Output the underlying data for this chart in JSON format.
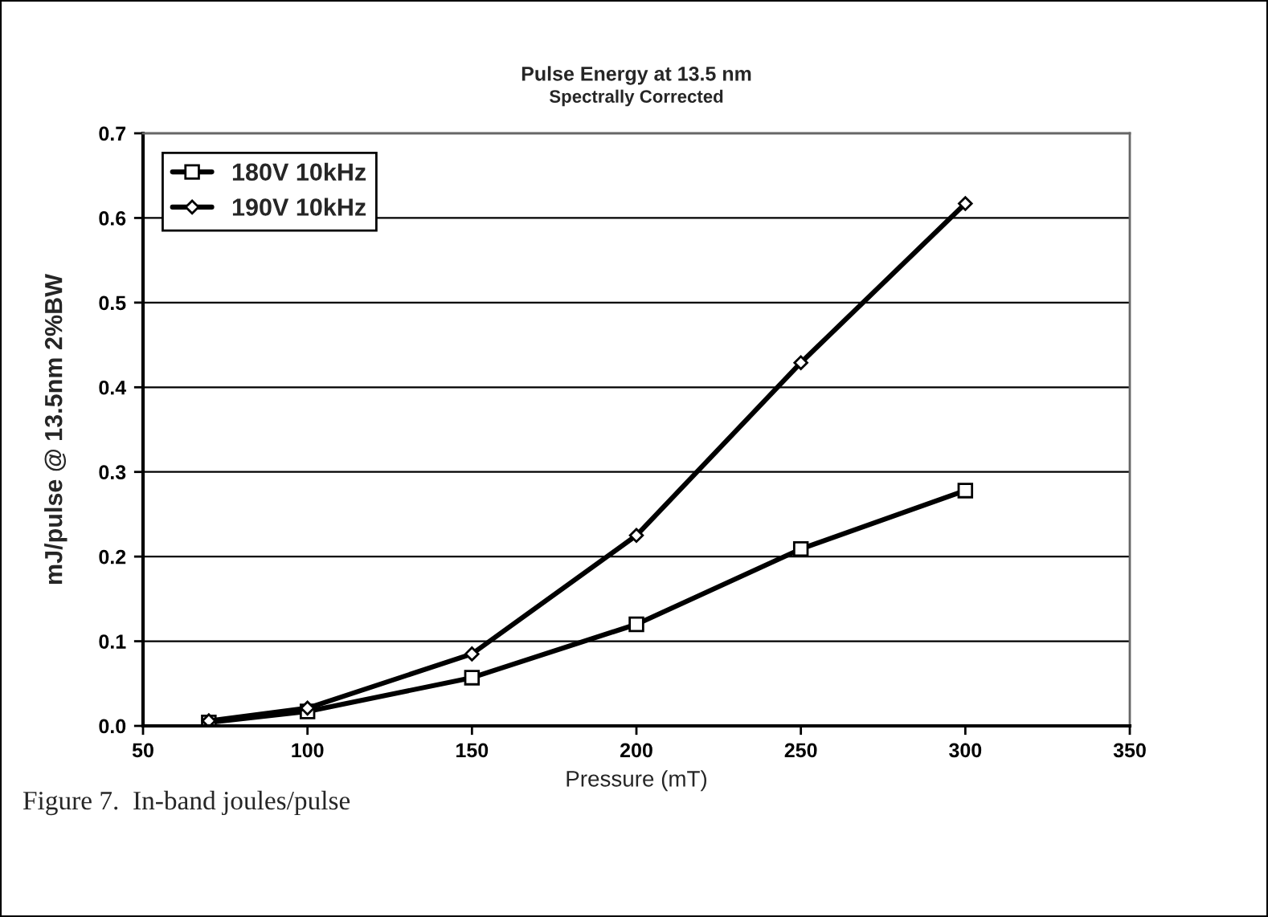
{
  "chart_data": {
    "type": "line",
    "title": "Pulse Energy at 13.5 nm",
    "subtitle": "Spectrally Corrected",
    "xlabel": "Pressure (mT)",
    "ylabel": "mJ/pulse @ 13.5nm 2%BW",
    "x": [
      70,
      100,
      150,
      200,
      250,
      300
    ],
    "series": [
      {
        "name": "180V 10kHz",
        "color": "#000000",
        "marker": "square",
        "values": [
          0.004,
          0.017,
          0.057,
          0.12,
          0.209,
          0.278
        ]
      },
      {
        "name": "190V 10kHz",
        "color": "#000000",
        "marker": "diamond",
        "values": [
          0.006,
          0.021,
          0.085,
          0.225,
          0.429,
          0.617
        ]
      }
    ],
    "xlim": [
      50,
      350
    ],
    "xticks": [
      50,
      100,
      150,
      200,
      250,
      300,
      350
    ],
    "ylim": [
      0,
      0.7
    ],
    "yticks": [
      {
        "value": 0,
        "label": "0.0"
      },
      0.1,
      0.2,
      0.3,
      0.4,
      0.5,
      0.6,
      0.7
    ],
    "grid": "y",
    "legend": "top left",
    "line_style": "solid",
    "annotations": [
      "Figure 7.  In-band joules/pulse"
    ]
  }
}
